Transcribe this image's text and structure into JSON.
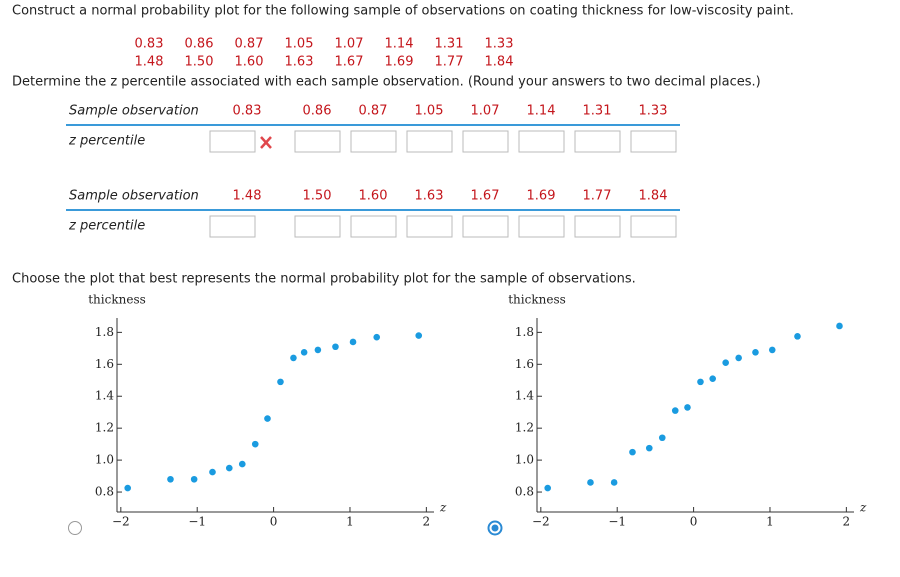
{
  "question": {
    "prompt": "Construct a normal probability plot for the following sample of observations on coating thickness for low-viscosity paint.",
    "sample": [
      [
        "0.83",
        "0.86",
        "0.87",
        "1.05",
        "1.07",
        "1.14",
        "1.31",
        "1.33"
      ],
      [
        "1.48",
        "1.50",
        "1.60",
        "1.63",
        "1.67",
        "1.69",
        "1.77",
        "1.84"
      ]
    ],
    "instruction": "Determine the z percentile associated with each sample observation. (Round your answers to two decimal places.)",
    "tables": [
      {
        "header": "Sample observation",
        "observations": [
          "0.83",
          "0.86",
          "0.87",
          "1.05",
          "1.07",
          "1.14",
          "1.31",
          "1.33"
        ],
        "row_label": "z percentile"
      },
      {
        "header": "Sample observation",
        "observations": [
          "1.48",
          "1.50",
          "1.60",
          "1.63",
          "1.67",
          "1.69",
          "1.77",
          "1.84"
        ],
        "row_label": "z percentile"
      }
    ],
    "choose_prompt": "Choose the plot that best represents the normal probability plot for the sample of observations."
  },
  "chart_data": [
    {
      "type": "scatter",
      "title": "thickness",
      "x_label": "z",
      "color": "#1a9be0",
      "selected": false,
      "x": [
        -1.91,
        -1.35,
        -1.04,
        -0.8,
        -0.58,
        -0.41,
        -0.24,
        -0.08,
        0.09,
        0.26,
        0.4,
        0.58,
        0.81,
        1.04,
        1.35,
        1.9
      ],
      "values": [
        0.825,
        0.88,
        0.88,
        0.925,
        0.95,
        0.975,
        1.1,
        1.26,
        1.49,
        1.64,
        1.675,
        1.69,
        1.71,
        1.74,
        1.77,
        1.78
      ],
      "xlim": [
        -2.05,
        2.1
      ],
      "ylim": [
        0.675,
        1.89
      ],
      "xticks": [
        {
          "value": -2,
          "label": "−2"
        },
        {
          "value": -1,
          "label": "−1"
        },
        0,
        1,
        2
      ],
      "yticks": [
        0.8,
        {
          "value": 1,
          "label": "1.0"
        },
        1.2,
        1.4,
        1.6,
        1.8
      ]
    },
    {
      "type": "scatter",
      "title": "thickness",
      "x_label": "z",
      "color": "#1a9be0",
      "selected": true,
      "x": [
        -1.91,
        -1.35,
        -1.04,
        -0.8,
        -0.58,
        -0.41,
        -0.24,
        -0.08,
        0.09,
        0.25,
        0.42,
        0.59,
        0.81,
        1.03,
        1.36,
        1.91
      ],
      "values": [
        0.825,
        0.86,
        0.86,
        1.05,
        1.075,
        1.14,
        1.31,
        1.33,
        1.49,
        1.51,
        1.61,
        1.64,
        1.675,
        1.69,
        1.775,
        1.84
      ],
      "xlim": [
        -2.05,
        2.1
      ],
      "ylim": [
        0.675,
        1.89
      ],
      "xticks": [
        {
          "value": -2,
          "label": "−2"
        },
        {
          "value": -1,
          "label": "−1"
        },
        0,
        1,
        2
      ],
      "yticks": [
        0.8,
        {
          "value": 1,
          "label": "1.0"
        },
        1.2,
        1.4,
        1.6,
        1.8
      ]
    }
  ]
}
